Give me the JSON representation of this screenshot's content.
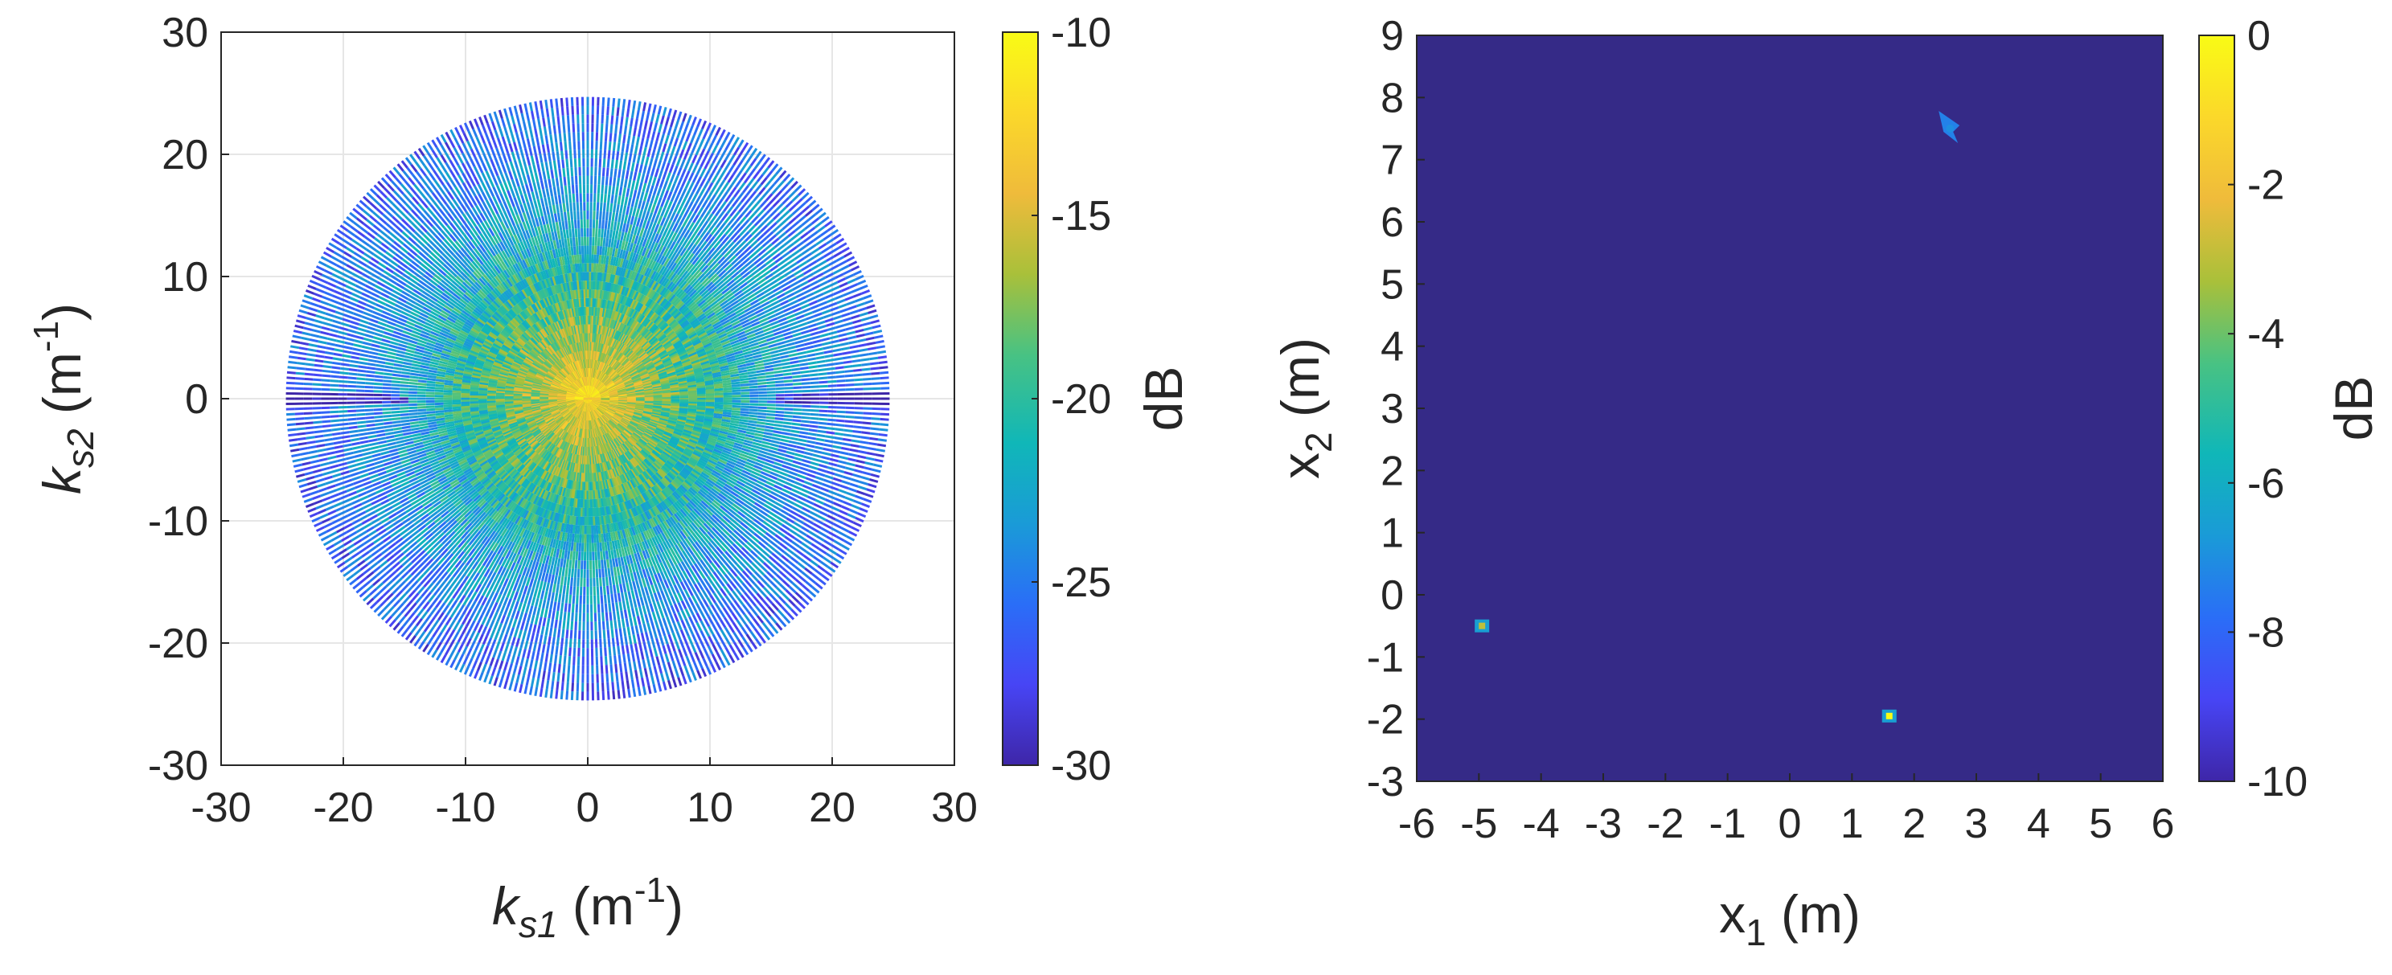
{
  "chart_data": [
    {
      "type": "scatter",
      "title": "",
      "xlabel": {
        "base": "k",
        "sub": "s1",
        "unit_prefix": " (m",
        "sup": "-1",
        "unit_suffix": ")"
      },
      "ylabel": {
        "base": "k",
        "sub": "s2",
        "unit_prefix": " (m",
        "sup": "-1",
        "unit_suffix": ")"
      },
      "xlim": [
        -30,
        30
      ],
      "ylim": [
        -30,
        30
      ],
      "xticks": [
        "-30",
        "-20",
        "-10",
        "0",
        "10",
        "20",
        "30"
      ],
      "yticks": [
        "-30",
        "-20",
        "-10",
        "0",
        "10",
        "20",
        "30"
      ],
      "grid": true,
      "description": "polar sampling pattern of radial spokes filling a disk",
      "spokes": {
        "count": 180,
        "k_max": 24.7,
        "samples_per_spoke": 70,
        "orientation": "radial through origin"
      },
      "value_pattern": "highest (about -10 dB) near the origin, falling toward about -28 dB at the disk edge, with lower values along the horizontal axis near |k_s1| of 25",
      "colorbar": {
        "label": "dB",
        "min": -30,
        "max": -10,
        "ticks": [
          "-10",
          "-15",
          "-20",
          "-25",
          "-30"
        ]
      }
    },
    {
      "type": "heatmap",
      "title": "",
      "xlabel": {
        "base": "x",
        "sub": "1",
        "unit": " (m)"
      },
      "ylabel": {
        "base": "x",
        "sub": "2",
        "unit": " (m)"
      },
      "xlim": [
        -6,
        6
      ],
      "ylim": [
        -3,
        9
      ],
      "xticks": [
        "-6",
        "-5",
        "-4",
        "-3",
        "-2",
        "-1",
        "0",
        "1",
        "2",
        "3",
        "4",
        "5",
        "6"
      ],
      "yticks": [
        "-3",
        "-2",
        "-1",
        "0",
        "1",
        "2",
        "3",
        "4",
        "5",
        "6",
        "7",
        "8",
        "9"
      ],
      "grid": false,
      "background_db": -10,
      "targets": [
        {
          "x1": -4.95,
          "x2": -0.5,
          "peak_db": -3,
          "shape": "point"
        },
        {
          "x1": 1.6,
          "x2": -1.95,
          "peak_db": 0,
          "shape": "point"
        },
        {
          "x1": 2.55,
          "x2": 7.5,
          "peak_db": -7,
          "shape": "chevron"
        }
      ],
      "colorbar": {
        "label": "dB",
        "min": -10,
        "max": 0,
        "ticks": [
          "0",
          "-2",
          "-4",
          "-6",
          "-8",
          "-10"
        ]
      }
    }
  ],
  "colors": {
    "colormap": [
      "#3e26a8",
      "#4745f5",
      "#2a6ef7",
      "#1a9bd7",
      "#10b7b8",
      "#48c283",
      "#a9c03a",
      "#efbb3b",
      "#fbd82a",
      "#f9fb15"
    ],
    "heatmap_background": "#352a87"
  }
}
